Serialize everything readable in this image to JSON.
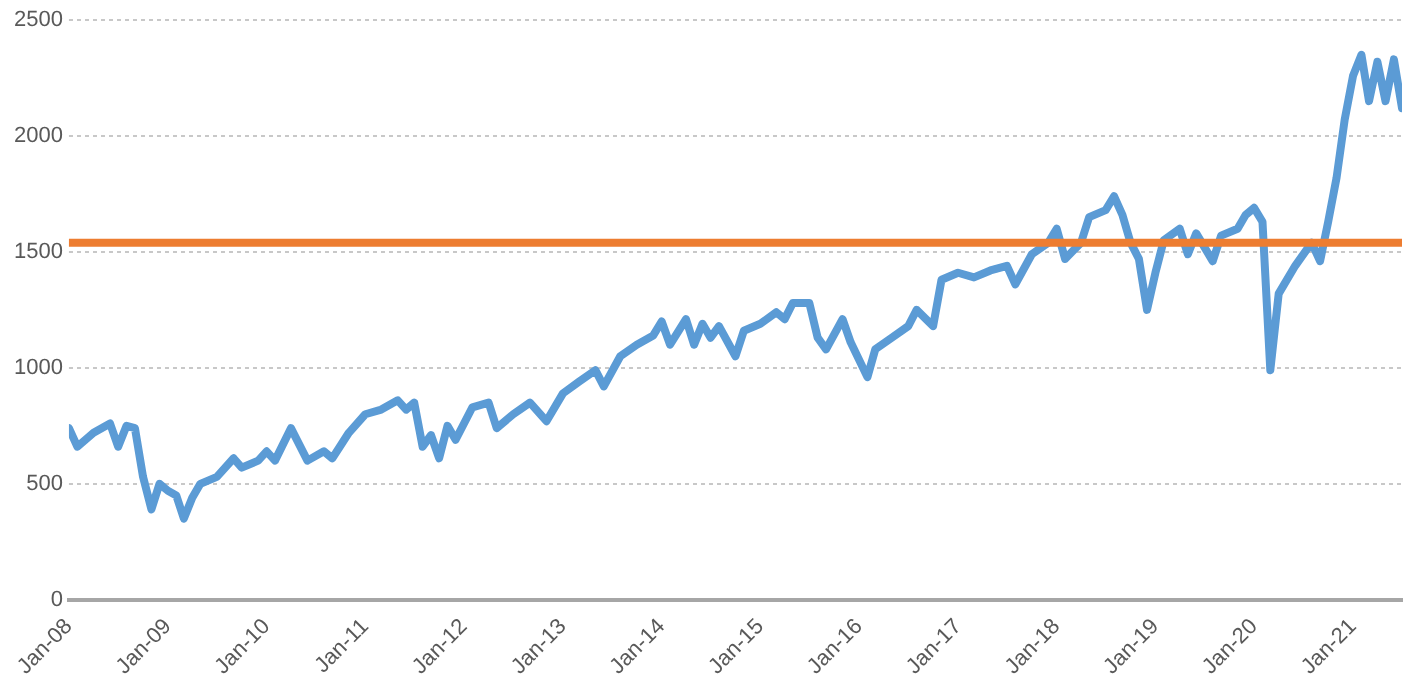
{
  "chart_data": {
    "type": "line",
    "x": [
      "2008-01",
      "2008-02",
      "2008-04",
      "2008-06",
      "2008-07",
      "2008-08",
      "2008-09",
      "2008-10",
      "2008-11",
      "2008-12",
      "2009-01",
      "2009-02",
      "2009-03",
      "2009-04",
      "2009-05",
      "2009-07",
      "2009-09",
      "2009-10",
      "2009-12",
      "2010-01",
      "2010-02",
      "2010-04",
      "2010-06",
      "2010-08",
      "2010-09",
      "2010-11",
      "2011-01",
      "2011-03",
      "2011-05",
      "2011-06",
      "2011-07",
      "2011-08",
      "2011-09",
      "2011-10",
      "2011-11",
      "2011-12",
      "2012-02",
      "2012-04",
      "2012-05",
      "2012-07",
      "2012-09",
      "2012-11",
      "2013-01",
      "2013-03",
      "2013-05",
      "2013-06",
      "2013-08",
      "2013-10",
      "2013-12",
      "2014-01",
      "2014-02",
      "2014-04",
      "2014-05",
      "2014-06",
      "2014-07",
      "2014-08",
      "2014-10",
      "2014-11",
      "2015-01",
      "2015-03",
      "2015-04",
      "2015-05",
      "2015-07",
      "2015-08",
      "2015-09",
      "2015-11",
      "2015-12",
      "2016-02",
      "2016-03",
      "2016-05",
      "2016-07",
      "2016-08",
      "2016-10",
      "2016-11",
      "2017-01",
      "2017-03",
      "2017-05",
      "2017-07",
      "2017-08",
      "2017-10",
      "2017-12",
      "2018-01",
      "2018-02",
      "2018-04",
      "2018-05",
      "2018-07",
      "2018-08",
      "2018-09",
      "2018-10",
      "2018-11",
      "2018-12",
      "2019-01",
      "2019-02",
      "2019-04",
      "2019-05",
      "2019-06",
      "2019-08",
      "2019-09",
      "2019-11",
      "2019-12",
      "2020-01",
      "2020-02",
      "2020-03",
      "2020-04",
      "2020-06",
      "2020-08",
      "2020-09",
      "2020-10",
      "2020-11",
      "2020-12",
      "2021-01",
      "2021-02",
      "2021-03",
      "2021-04",
      "2021-05",
      "2021-06",
      "2021-07"
    ],
    "series": [
      {
        "color": "#5b9bd5",
        "values": [
          740,
          660,
          720,
          760,
          660,
          750,
          740,
          530,
          390,
          500,
          470,
          450,
          350,
          440,
          500,
          530,
          610,
          570,
          600,
          640,
          600,
          740,
          600,
          640,
          610,
          720,
          800,
          820,
          860,
          820,
          850,
          660,
          710,
          610,
          750,
          690,
          830,
          850,
          740,
          800,
          850,
          770,
          890,
          940,
          990,
          920,
          1050,
          1100,
          1140,
          1200,
          1100,
          1210,
          1100,
          1190,
          1130,
          1180,
          1050,
          1160,
          1190,
          1240,
          1210,
          1280,
          1280,
          1130,
          1080,
          1210,
          1110,
          960,
          1080,
          1130,
          1180,
          1250,
          1180,
          1380,
          1410,
          1390,
          1420,
          1440,
          1360,
          1490,
          1540,
          1600,
          1470,
          1540,
          1650,
          1680,
          1740,
          1660,
          1540,
          1470,
          1250,
          1410,
          1550,
          1600,
          1490,
          1580,
          1460,
          1570,
          1600,
          1660,
          1690,
          1630,
          990,
          1320,
          1440,
          1540,
          1460,
          1630,
          1820,
          2070,
          2260,
          2350,
          2150,
          2320,
          2150,
          2330,
          2120
        ]
      }
    ],
    "ref_lines": [
      {
        "axis": "y",
        "value": 1540,
        "color": "#ed7d31"
      }
    ],
    "xlim": [
      "2008-01",
      "2021-07"
    ],
    "xticks": [
      {
        "value": "2008-01",
        "label": "Jan-08"
      },
      {
        "value": "2009-01",
        "label": "Jan-09"
      },
      {
        "value": "2010-01",
        "label": "Jan-10"
      },
      {
        "value": "2011-01",
        "label": "Jan-11"
      },
      {
        "value": "2012-01",
        "label": "Jan-12"
      },
      {
        "value": "2013-01",
        "label": "Jan-13"
      },
      {
        "value": "2014-01",
        "label": "Jan-14"
      },
      {
        "value": "2015-01",
        "label": "Jan-15"
      },
      {
        "value": "2016-01",
        "label": "Jan-16"
      },
      {
        "value": "2017-01",
        "label": "Jan-17"
      },
      {
        "value": "2018-01",
        "label": "Jan-18"
      },
      {
        "value": "2019-01",
        "label": "Jan-19"
      },
      {
        "value": "2020-01",
        "label": "Jan-20"
      },
      {
        "value": "2021-01",
        "label": "Jan-21"
      }
    ],
    "ylim": [
      0,
      2500
    ],
    "yticks": [
      0,
      500,
      1000,
      1500,
      2000,
      2500
    ],
    "grid": "y",
    "legend": false,
    "marker": "none",
    "line_style": "solid"
  }
}
